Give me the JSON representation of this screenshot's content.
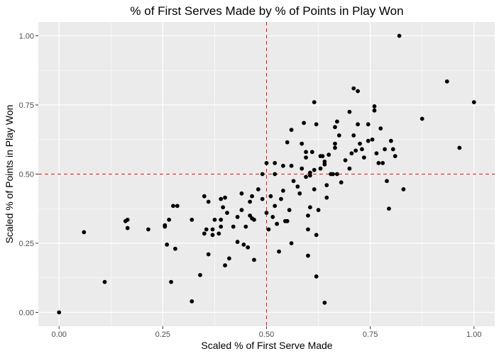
{
  "chart_data": {
    "type": "scatter",
    "title": "% of First Serves Made by % of Points in Play Won",
    "xlabel": "Scaled % of First Serve Made",
    "ylabel": "Scaled % of Points in Play Won",
    "xlim": [
      -0.05,
      1.05
    ],
    "ylim": [
      -0.05,
      1.05
    ],
    "xticks": [
      0.0,
      0.25,
      0.5,
      0.75,
      1.0
    ],
    "yticks": [
      0.0,
      0.25,
      0.5,
      0.75,
      1.0
    ],
    "xtick_labels": [
      "0.00",
      "0.25",
      "0.50",
      "0.75",
      "1.00"
    ],
    "ytick_labels": [
      "0.00",
      "0.25",
      "0.50",
      "0.75",
      "1.00"
    ],
    "grid": true,
    "legend": "none",
    "reference_lines": [
      {
        "orientation": "vertical",
        "value": 0.5,
        "style": "dashed",
        "color": "#ff0000"
      },
      {
        "orientation": "horizontal",
        "value": 0.5,
        "style": "dashed",
        "color": "#ff0000"
      }
    ],
    "colors": {
      "panel": "#ebebeb",
      "grid": "#ffffff",
      "point": "#000000"
    },
    "points": [
      [
        0.0,
        0.0
      ],
      [
        0.06,
        0.29
      ],
      [
        0.11,
        0.11
      ],
      [
        0.16,
        0.33
      ],
      [
        0.165,
        0.305
      ],
      [
        0.165,
        0.335
      ],
      [
        0.215,
        0.3
      ],
      [
        0.255,
        0.31
      ],
      [
        0.255,
        0.315
      ],
      [
        0.26,
        0.245
      ],
      [
        0.265,
        0.335
      ],
      [
        0.27,
        0.11
      ],
      [
        0.275,
        0.385
      ],
      [
        0.28,
        0.23
      ],
      [
        0.285,
        0.385
      ],
      [
        0.32,
        0.04
      ],
      [
        0.32,
        0.335
      ],
      [
        0.34,
        0.135
      ],
      [
        0.35,
        0.42
      ],
      [
        0.35,
        0.285
      ],
      [
        0.355,
        0.3
      ],
      [
        0.36,
        0.21
      ],
      [
        0.36,
        0.4
      ],
      [
        0.37,
        0.3
      ],
      [
        0.37,
        0.28
      ],
      [
        0.375,
        0.335
      ],
      [
        0.385,
        0.285
      ],
      [
        0.39,
        0.31
      ],
      [
        0.39,
        0.41
      ],
      [
        0.39,
        0.335
      ],
      [
        0.395,
        0.38
      ],
      [
        0.4,
        0.415
      ],
      [
        0.405,
        0.36
      ],
      [
        0.4,
        0.17
      ],
      [
        0.41,
        0.195
      ],
      [
        0.42,
        0.31
      ],
      [
        0.43,
        0.345
      ],
      [
        0.43,
        0.255
      ],
      [
        0.44,
        0.37
      ],
      [
        0.44,
        0.43
      ],
      [
        0.445,
        0.245
      ],
      [
        0.45,
        0.31
      ],
      [
        0.455,
        0.235
      ],
      [
        0.46,
        0.4
      ],
      [
        0.46,
        0.35
      ],
      [
        0.465,
        0.34
      ],
      [
        0.465,
        0.42
      ],
      [
        0.47,
        0.335
      ],
      [
        0.47,
        0.19
      ],
      [
        0.48,
        0.445
      ],
      [
        0.49,
        0.5
      ],
      [
        0.49,
        0.41
      ],
      [
        0.5,
        0.54
      ],
      [
        0.5,
        0.36
      ],
      [
        0.505,
        0.3
      ],
      [
        0.51,
        0.42
      ],
      [
        0.515,
        0.345
      ],
      [
        0.52,
        0.5
      ],
      [
        0.52,
        0.385
      ],
      [
        0.52,
        0.54
      ],
      [
        0.525,
        0.32
      ],
      [
        0.53,
        0.22
      ],
      [
        0.535,
        0.41
      ],
      [
        0.54,
        0.44
      ],
      [
        0.54,
        0.53
      ],
      [
        0.545,
        0.33
      ],
      [
        0.55,
        0.615
      ],
      [
        0.55,
        0.33
      ],
      [
        0.555,
        0.37
      ],
      [
        0.56,
        0.66
      ],
      [
        0.56,
        0.53
      ],
      [
        0.56,
        0.25
      ],
      [
        0.565,
        0.475
      ],
      [
        0.575,
        0.455
      ],
      [
        0.58,
        0.43
      ],
      [
        0.585,
        0.61
      ],
      [
        0.585,
        0.52
      ],
      [
        0.59,
        0.685
      ],
      [
        0.595,
        0.56
      ],
      [
        0.595,
        0.49
      ],
      [
        0.595,
        0.58
      ],
      [
        0.6,
        0.3
      ],
      [
        0.6,
        0.205
      ],
      [
        0.6,
        0.35
      ],
      [
        0.605,
        0.505
      ],
      [
        0.605,
        0.38
      ],
      [
        0.605,
        0.495
      ],
      [
        0.61,
        0.58
      ],
      [
        0.615,
        0.515
      ],
      [
        0.615,
        0.76
      ],
      [
        0.615,
        0.445
      ],
      [
        0.62,
        0.68
      ],
      [
        0.62,
        0.13
      ],
      [
        0.62,
        0.28
      ],
      [
        0.625,
        0.37
      ],
      [
        0.63,
        0.52
      ],
      [
        0.63,
        0.565
      ],
      [
        0.635,
        0.565
      ],
      [
        0.64,
        0.035
      ],
      [
        0.64,
        0.545
      ],
      [
        0.64,
        0.535
      ],
      [
        0.645,
        0.46
      ],
      [
        0.645,
        0.415
      ],
      [
        0.65,
        0.57
      ],
      [
        0.655,
        0.5
      ],
      [
        0.66,
        0.5
      ],
      [
        0.665,
        0.67
      ],
      [
        0.665,
        0.61
      ],
      [
        0.665,
        0.595
      ],
      [
        0.67,
        0.69
      ],
      [
        0.67,
        0.5
      ],
      [
        0.675,
        0.64
      ],
      [
        0.68,
        0.47
      ],
      [
        0.69,
        0.55
      ],
      [
        0.7,
        0.725
      ],
      [
        0.7,
        0.52
      ],
      [
        0.705,
        0.575
      ],
      [
        0.71,
        0.81
      ],
      [
        0.71,
        0.64
      ],
      [
        0.715,
        0.585
      ],
      [
        0.72,
        0.8
      ],
      [
        0.72,
        0.68
      ],
      [
        0.725,
        0.61
      ],
      [
        0.73,
        0.59
      ],
      [
        0.735,
        0.56
      ],
      [
        0.745,
        0.62
      ],
      [
        0.745,
        0.68
      ],
      [
        0.755,
        0.625
      ],
      [
        0.76,
        0.73
      ],
      [
        0.76,
        0.745
      ],
      [
        0.765,
        0.575
      ],
      [
        0.77,
        0.54
      ],
      [
        0.775,
        0.665
      ],
      [
        0.78,
        0.54
      ],
      [
        0.785,
        0.59
      ],
      [
        0.79,
        0.475
      ],
      [
        0.795,
        0.375
      ],
      [
        0.8,
        0.62
      ],
      [
        0.805,
        0.59
      ],
      [
        0.81,
        0.565
      ],
      [
        0.82,
        1.0
      ],
      [
        0.83,
        0.445
      ],
      [
        0.875,
        0.7
      ],
      [
        0.935,
        0.835
      ],
      [
        0.965,
        0.595
      ],
      [
        1.0,
        0.76
      ]
    ]
  }
}
